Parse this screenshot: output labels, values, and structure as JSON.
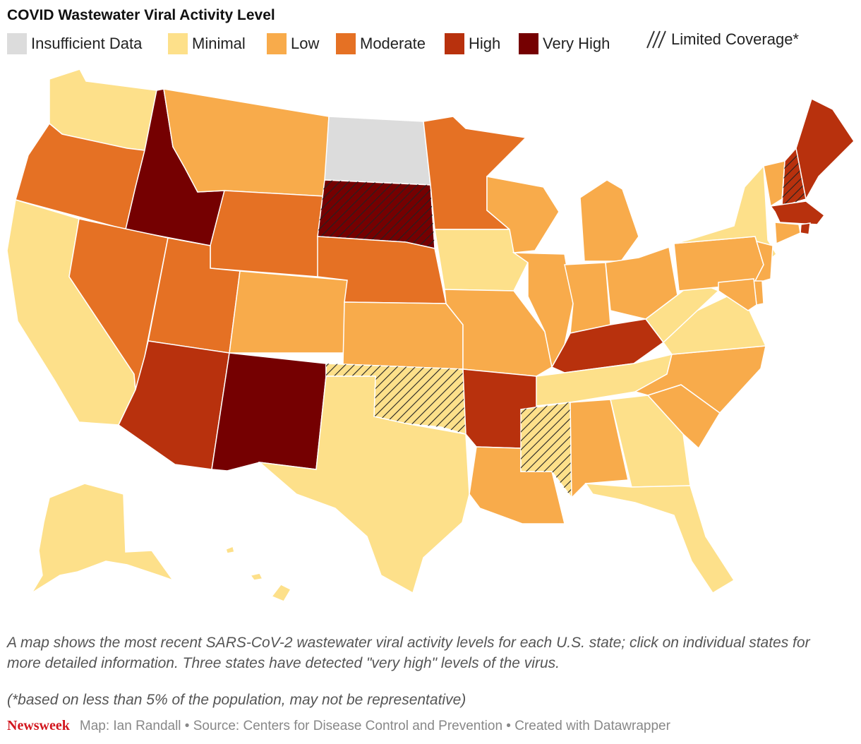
{
  "title": "COVID Wastewater Viral Activity Level",
  "legend": [
    {
      "label": "Insufficient Data",
      "color": "#dcdcdc"
    },
    {
      "label": "Minimal",
      "color": "#fde08a"
    },
    {
      "label": "Low",
      "color": "#f8ab4b"
    },
    {
      "label": "Moderate",
      "color": "#e57124"
    },
    {
      "label": "High",
      "color": "#b8310d"
    },
    {
      "label": "Very High",
      "color": "#750001"
    }
  ],
  "hatch_label": "Limited Coverage*",
  "colors": {
    "insufficient": "#dcdcdc",
    "minimal": "#fde08a",
    "low": "#f8ab4b",
    "moderate": "#e57124",
    "high": "#b8310d",
    "very_high": "#750001"
  },
  "states": [
    {
      "name": "Washington",
      "level": "minimal"
    },
    {
      "name": "Oregon",
      "level": "moderate"
    },
    {
      "name": "California",
      "level": "minimal"
    },
    {
      "name": "Idaho",
      "level": "very_high"
    },
    {
      "name": "Nevada",
      "level": "moderate"
    },
    {
      "name": "Montana",
      "level": "low"
    },
    {
      "name": "Wyoming",
      "level": "moderate"
    },
    {
      "name": "Utah",
      "level": "moderate"
    },
    {
      "name": "Arizona",
      "level": "high"
    },
    {
      "name": "Colorado",
      "level": "low"
    },
    {
      "name": "New Mexico",
      "level": "very_high"
    },
    {
      "name": "North Dakota",
      "level": "insufficient"
    },
    {
      "name": "South Dakota",
      "level": "very_high",
      "limited": true
    },
    {
      "name": "Nebraska",
      "level": "moderate"
    },
    {
      "name": "Kansas",
      "level": "low"
    },
    {
      "name": "Oklahoma",
      "level": "minimal",
      "limited": true
    },
    {
      "name": "Texas",
      "level": "minimal"
    },
    {
      "name": "Minnesota",
      "level": "moderate"
    },
    {
      "name": "Iowa",
      "level": "minimal"
    },
    {
      "name": "Missouri",
      "level": "low"
    },
    {
      "name": "Arkansas",
      "level": "high"
    },
    {
      "name": "Louisiana",
      "level": "low"
    },
    {
      "name": "Wisconsin",
      "level": "low"
    },
    {
      "name": "Illinois",
      "level": "low"
    },
    {
      "name": "Michigan",
      "level": "low"
    },
    {
      "name": "Indiana",
      "level": "low"
    },
    {
      "name": "Ohio",
      "level": "low"
    },
    {
      "name": "Kentucky",
      "level": "high"
    },
    {
      "name": "Tennessee",
      "level": "minimal"
    },
    {
      "name": "Mississippi",
      "level": "minimal",
      "limited": true
    },
    {
      "name": "Alabama",
      "level": "low"
    },
    {
      "name": "Georgia",
      "level": "minimal"
    },
    {
      "name": "Florida",
      "level": "minimal"
    },
    {
      "name": "South Carolina",
      "level": "low"
    },
    {
      "name": "North Carolina",
      "level": "low"
    },
    {
      "name": "Virginia",
      "level": "minimal"
    },
    {
      "name": "West Virginia",
      "level": "minimal"
    },
    {
      "name": "Pennsylvania",
      "level": "low"
    },
    {
      "name": "New York",
      "level": "minimal"
    },
    {
      "name": "Vermont",
      "level": "low"
    },
    {
      "name": "New Hampshire",
      "level": "high",
      "limited": true
    },
    {
      "name": "Maine",
      "level": "high"
    },
    {
      "name": "Massachusetts",
      "level": "high"
    },
    {
      "name": "Rhode Island",
      "level": "high"
    },
    {
      "name": "Connecticut",
      "level": "low"
    },
    {
      "name": "New Jersey",
      "level": "low"
    },
    {
      "name": "Delaware",
      "level": "low"
    },
    {
      "name": "Maryland",
      "level": "low"
    },
    {
      "name": "Alaska",
      "level": "minimal"
    },
    {
      "name": "Hawaii",
      "level": "minimal"
    }
  ],
  "caption": "A map shows the most recent SARS-CoV-2 wastewater viral activity levels for each U.S. state; click on individual states for more detailed information. Three states have detected \"very high\" levels of the virus.",
  "note": "(*based on less than 5% of the population, may not be representative)",
  "footer": {
    "brand": "Newsweek",
    "credits": "Map: Ian Randall • Source: Centers for Disease Control and Prevention • Created with Datawrapper"
  }
}
